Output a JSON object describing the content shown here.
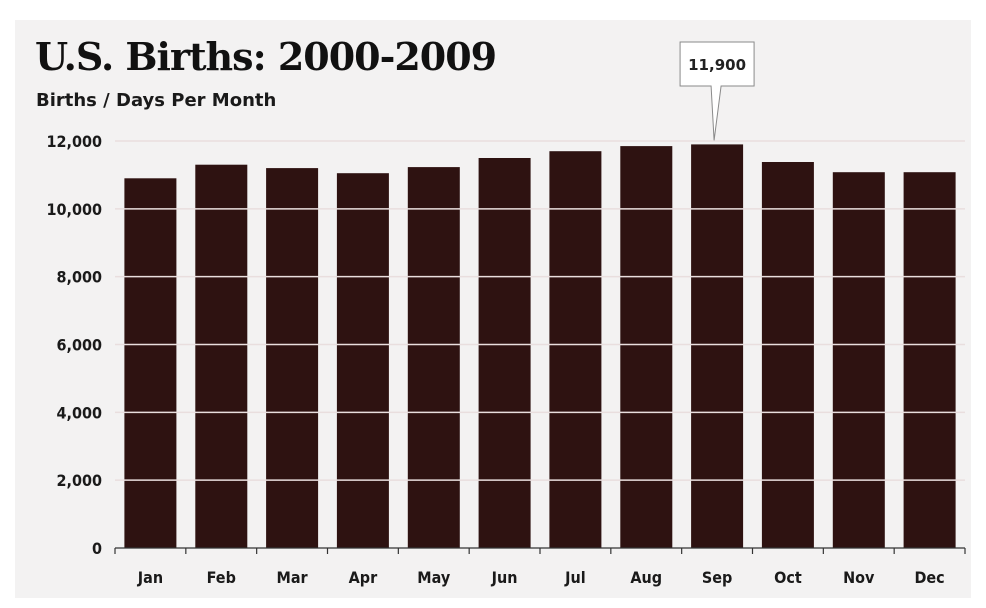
{
  "chart_data": {
    "type": "bar",
    "title": "U.S. Births: 2000-2009",
    "subtitle": "Births / Days Per Month",
    "xlabel": "",
    "ylabel": "",
    "categories": [
      "Jan",
      "Feb",
      "Mar",
      "Apr",
      "May",
      "Jun",
      "Jul",
      "Aug",
      "Sep",
      "Oct",
      "Nov",
      "Dec"
    ],
    "values": [
      10900,
      11300,
      11200,
      11050,
      11230,
      11500,
      11700,
      11850,
      11900,
      11380,
      11080,
      11080
    ],
    "ylim": [
      0,
      12000
    ],
    "yticks": [
      0,
      2000,
      4000,
      6000,
      8000,
      10000,
      12000
    ],
    "ytick_labels": [
      "0",
      "2,000",
      "4,000",
      "6,000",
      "8,000",
      "10,000",
      "12,000"
    ],
    "grid": true,
    "legend": "none",
    "annotation": {
      "category": "Sep",
      "text": "11,900"
    },
    "colors": {
      "bar": "#2e1211",
      "background": "#f3f2f2",
      "grid": "#e9dede"
    }
  }
}
